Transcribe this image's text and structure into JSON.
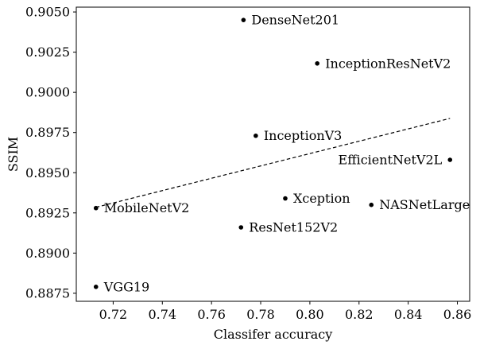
{
  "chart_data": {
    "type": "scatter",
    "title": "",
    "xlabel": "Classifer accuracy",
    "ylabel": "SSIM",
    "xlim": [
      0.705,
      0.865
    ],
    "ylim": [
      0.887,
      0.9053
    ],
    "x_ticks": [
      0.72,
      0.74,
      0.76,
      0.78,
      0.8,
      0.82,
      0.84,
      0.86
    ],
    "x_tick_labels": [
      "0.72",
      "0.74",
      "0.76",
      "0.78",
      "0.80",
      "0.82",
      "0.84",
      "0.86"
    ],
    "y_ticks": [
      0.8875,
      0.89,
      0.8925,
      0.895,
      0.8975,
      0.9,
      0.9025,
      0.905
    ],
    "y_tick_labels": [
      "0.8875",
      "0.8900",
      "0.8925",
      "0.8950",
      "0.8975",
      "0.9000",
      "0.9025",
      "0.9050"
    ],
    "grid": false,
    "points": [
      {
        "label": "DenseNet201",
        "x": 0.773,
        "y": 0.9045,
        "label_side": "right"
      },
      {
        "label": "InceptionResNetV2",
        "x": 0.803,
        "y": 0.9018,
        "label_side": "right"
      },
      {
        "label": "InceptionV3",
        "x": 0.778,
        "y": 0.8973,
        "label_side": "right"
      },
      {
        "label": "EfficientNetV2L",
        "x": 0.857,
        "y": 0.8958,
        "label_side": "left"
      },
      {
        "label": "Xception",
        "x": 0.79,
        "y": 0.8934,
        "label_side": "right"
      },
      {
        "label": "NASNetLarge",
        "x": 0.825,
        "y": 0.893,
        "label_side": "right"
      },
      {
        "label": "MobileNetV2",
        "x": 0.713,
        "y": 0.8928,
        "label_side": "right"
      },
      {
        "label": "ResNet152V2",
        "x": 0.772,
        "y": 0.8916,
        "label_side": "right"
      },
      {
        "label": "VGG19",
        "x": 0.713,
        "y": 0.8879,
        "label_side": "right"
      }
    ],
    "trendline": {
      "style": "dashed",
      "x": [
        0.713,
        0.857
      ],
      "y": [
        0.89285,
        0.89838
      ]
    }
  }
}
